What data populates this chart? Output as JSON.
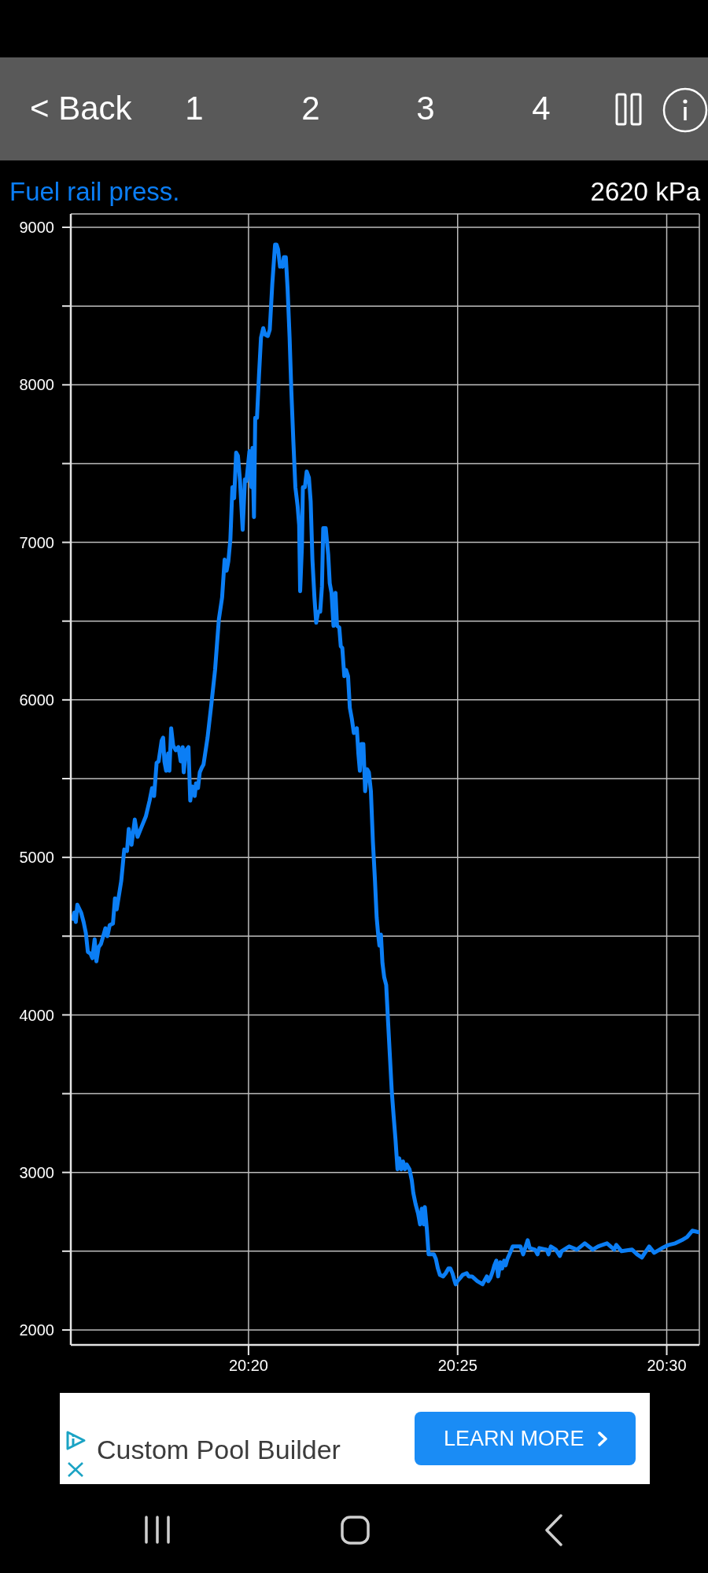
{
  "chart_data": {
    "type": "line",
    "title": "Fuel rail press.",
    "annotations": [
      "2620 kPa",
      "< Back",
      "1",
      "2",
      "3",
      "4",
      "Custom Pool Builder",
      "LEARN MORE"
    ],
    "color": "#0b7ef5",
    "marker": "none",
    "line_style": "solid",
    "grid": true,
    "xlim": [
      20.2625,
      20.513
    ],
    "xticks": [
      {
        "value": 20.33333,
        "label": "20:20"
      },
      {
        "value": 20.41667,
        "label": "20:25"
      },
      {
        "value": 20.5,
        "label": "20:30"
      }
    ],
    "ylim": [
      1905,
      9085
    ],
    "yticks": [
      2000,
      {
        "value": 2500,
        "label": null
      },
      3000,
      {
        "value": 3500,
        "label": null
      },
      4000,
      {
        "value": 4500,
        "label": null
      },
      5000,
      {
        "value": 5500,
        "label": null
      },
      6000,
      {
        "value": 6500,
        "label": null
      },
      7000,
      {
        "value": 7500,
        "label": null
      },
      8000,
      {
        "value": 8500,
        "label": null
      },
      9000
    ],
    "x": [
      20.2633,
      20.2639,
      20.2645,
      20.2651,
      20.2666,
      20.2676,
      20.2685,
      20.2693,
      20.2703,
      20.2711,
      20.272,
      20.2727,
      20.2736,
      20.2745,
      20.2756,
      20.2763,
      20.2771,
      20.278,
      20.2793,
      20.2801,
      20.2808,
      20.2816,
      20.2826,
      20.2838,
      20.2849,
      20.2856,
      20.2867,
      20.288,
      20.2891,
      20.2906,
      20.2924,
      20.2939,
      20.2949,
      20.2957,
      20.2967,
      20.2975,
      20.2987,
      20.2993,
      20.2998,
      20.3005,
      20.3013,
      20.3018,
      20.3025,
      20.3033,
      20.3043,
      20.3054,
      20.3063,
      20.3071,
      20.3075,
      20.3084,
      20.3094,
      20.3101,
      20.3109,
      20.3119,
      20.3124,
      20.3132,
      20.3139,
      20.3147,
      20.3154,
      20.317,
      20.3185,
      20.32,
      20.3215,
      20.3228,
      20.3238,
      20.3246,
      20.3253,
      20.3261,
      20.3269,
      20.3276,
      20.3284,
      20.3291,
      20.3299,
      20.331,
      20.3319,
      20.3325,
      20.3337,
      20.3345,
      20.3349,
      20.3355,
      20.336,
      20.3367,
      20.3375,
      20.3383,
      20.3392,
      20.3399,
      20.341,
      20.3418,
      20.3428,
      20.3439,
      20.3445,
      20.3451,
      20.3459,
      20.3465,
      20.3469,
      20.3474,
      20.3482,
      20.3489,
      20.3497,
      20.3504,
      20.3512,
      20.352,
      20.3529,
      20.3535,
      20.3539,
      20.3546,
      20.355,
      20.3558,
      20.3565,
      20.3574,
      20.3581,
      20.3588,
      20.3596,
      20.3603,
      20.3611,
      20.3619,
      20.3626,
      20.3631,
      20.3641,
      20.3651,
      20.3657,
      20.3664,
      20.3672,
      20.368,
      20.3686,
      20.3695,
      20.3701,
      20.3707,
      20.3715,
      20.3722,
      20.373,
      20.3737,
      20.3745,
      20.3753,
      20.3765,
      20.3771,
      20.3777,
      20.3783,
      20.3791,
      20.3798,
      20.3806,
      20.3813,
      20.3821,
      20.3829,
      20.3837,
      20.3844,
      20.385,
      20.3855,
      20.3861,
      20.3867,
      20.3874,
      20.3882,
      20.3889,
      20.3897,
      20.3904,
      20.3912,
      20.3919,
      20.3927,
      20.3934,
      20.3942,
      20.3949,
      20.3957,
      20.3964,
      20.3975,
      20.3984,
      20.399,
      20.3999,
      20.4009,
      20.4017,
      20.4024,
      20.4032,
      20.4036,
      20.4044,
      20.4051,
      20.4072,
      20.408,
      20.4088,
      20.4096,
      20.4109,
      20.4119,
      20.413,
      20.4138,
      20.4146,
      20.4153,
      20.4159,
      20.4166,
      20.4177,
      20.4187,
      20.4203,
      20.4211,
      20.4224,
      20.4245,
      20.4266,
      20.4276,
      20.4283,
      20.4289,
      20.4297,
      20.4306,
      20.4313,
      20.4321,
      20.4328,
      20.4337,
      20.4344,
      20.4352,
      20.4358,
      20.4365,
      20.4376,
      20.4386,
      20.4417,
      20.4428,
      20.4438,
      20.4446,
      20.4454,
      20.4475,
      20.4485,
      20.4492,
      20.4522,
      20.4529,
      20.4538,
      20.4558,
      20.4574,
      20.4581,
      20.4611,
      20.4642,
      20.4673,
      20.4705,
      20.4726,
      20.4762,
      20.4791,
      20.4799,
      20.482,
      20.4862,
      20.4882,
      20.4901,
      20.4909,
      20.493,
      20.495,
      20.4982,
      20.5008,
      20.5034,
      20.506,
      20.5081,
      20.5102,
      20.5128
    ],
    "values": [
      4610,
      4650,
      4590,
      4700,
      4650,
      4590,
      4520,
      4400,
      4390,
      4360,
      4480,
      4340,
      4430,
      4450,
      4510,
      4550,
      4500,
      4570,
      4580,
      4740,
      4670,
      4750,
      4850,
      5050,
      5040,
      5180,
      5080,
      5240,
      5130,
      5190,
      5260,
      5360,
      5440,
      5390,
      5600,
      5610,
      5740,
      5760,
      5610,
      5550,
      5660,
      5550,
      5820,
      5710,
      5680,
      5700,
      5610,
      5700,
      5540,
      5680,
      5700,
      5360,
      5450,
      5390,
      5470,
      5440,
      5540,
      5570,
      5590,
      5760,
      5970,
      6190,
      6510,
      6650,
      6890,
      6820,
      6880,
      7020,
      7350,
      7280,
      7570,
      7550,
      7400,
      7080,
      7400,
      7390,
      7580,
      7350,
      7600,
      7160,
      7790,
      7790,
      8060,
      8300,
      8360,
      8320,
      8310,
      8350,
      8640,
      8890,
      8890,
      8860,
      8750,
      8770,
      8750,
      8810,
      8810,
      8610,
      8300,
      7960,
      7640,
      7350,
      7230,
      7110,
      6690,
      6970,
      7350,
      7350,
      7450,
      7410,
      7260,
      6890,
      6650,
      6490,
      6560,
      6560,
      6720,
      7090,
      7090,
      6920,
      6740,
      6680,
      6470,
      6680,
      6470,
      6460,
      6340,
      6330,
      6150,
      6190,
      6150,
      5950,
      5880,
      5790,
      5820,
      5660,
      5550,
      5720,
      5720,
      5420,
      5560,
      5540,
      5420,
      5100,
      4860,
      4620,
      4510,
      4440,
      4510,
      4330,
      4240,
      4190,
      3970,
      3730,
      3520,
      3350,
      3210,
      3020,
      3090,
      3020,
      3070,
      3020,
      3050,
      3020,
      2950,
      2870,
      2800,
      2740,
      2670,
      2770,
      2670,
      2780,
      2640,
      2480,
      2480,
      2450,
      2390,
      2350,
      2340,
      2360,
      2390,
      2390,
      2360,
      2320,
      2290,
      2310,
      2330,
      2350,
      2360,
      2340,
      2340,
      2310,
      2290,
      2320,
      2340,
      2310,
      2330,
      2370,
      2410,
      2440,
      2340,
      2430,
      2390,
      2440,
      2410,
      2450,
      2490,
      2530,
      2530,
      2480,
      2530,
      2570,
      2520,
      2510,
      2480,
      2520,
      2510,
      2480,
      2530,
      2510,
      2470,
      2500,
      2530,
      2510,
      2550,
      2510,
      2530,
      2550,
      2510,
      2540,
      2500,
      2510,
      2480,
      2460,
      2480,
      2530,
      2490,
      2520,
      2540,
      2550,
      2570,
      2590,
      2630,
      2620
    ]
  }
}
